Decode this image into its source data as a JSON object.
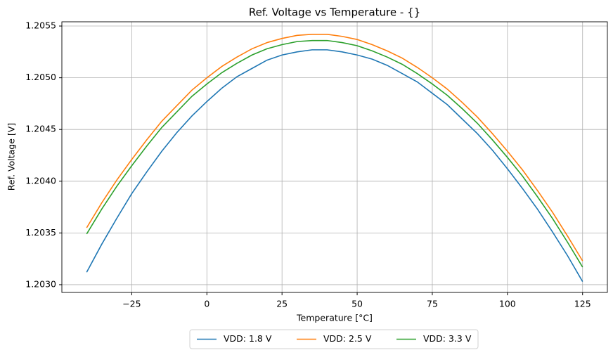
{
  "chart_data": {
    "type": "line",
    "title": "Ref. Voltage vs Temperature - {}",
    "x_label": "Temperature [°C]",
    "y_label": "Ref. Voltage [V]",
    "x": [
      -40,
      -35,
      -30,
      -25,
      -20,
      -15,
      -10,
      -5,
      0,
      5,
      10,
      15,
      20,
      25,
      30,
      35,
      40,
      45,
      50,
      55,
      60,
      65,
      70,
      75,
      80,
      85,
      90,
      95,
      100,
      105,
      110,
      115,
      120,
      125
    ],
    "series": [
      {
        "name": "VDD: 1.8 V",
        "color": "#1f77b4",
        "values": [
          1.20312,
          1.20339,
          1.20364,
          1.20388,
          1.20409,
          1.20429,
          1.20447,
          1.20463,
          1.20477,
          1.2049,
          1.20501,
          1.20509,
          1.20517,
          1.20522,
          1.20525,
          1.20527,
          1.20527,
          1.20525,
          1.20522,
          1.20518,
          1.20512,
          1.20504,
          1.20496,
          1.20485,
          1.20474,
          1.2046,
          1.20446,
          1.2043,
          1.20412,
          1.20393,
          1.20373,
          1.20351,
          1.20328,
          1.20303
        ]
      },
      {
        "name": "VDD: 2.5 V",
        "color": "#ff7f0e",
        "values": [
          1.20355,
          1.20379,
          1.20401,
          1.20421,
          1.2044,
          1.20458,
          1.20473,
          1.20488,
          1.205,
          1.20511,
          1.2052,
          1.20528,
          1.20534,
          1.20538,
          1.20541,
          1.20542,
          1.20542,
          1.2054,
          1.20537,
          1.20532,
          1.20526,
          1.20519,
          1.2051,
          1.205,
          1.20489,
          1.20476,
          1.20462,
          1.20446,
          1.20429,
          1.20411,
          1.20391,
          1.2037,
          1.20347,
          1.20323
        ]
      },
      {
        "name": "VDD: 3.3 V",
        "color": "#2ca02c",
        "values": [
          1.20349,
          1.20373,
          1.20395,
          1.20415,
          1.20434,
          1.20452,
          1.20467,
          1.20482,
          1.20494,
          1.20505,
          1.20514,
          1.20522,
          1.20528,
          1.20532,
          1.20535,
          1.20536,
          1.20536,
          1.20534,
          1.20531,
          1.20526,
          1.2052,
          1.20513,
          1.20504,
          1.20494,
          1.20483,
          1.2047,
          1.20456,
          1.2044,
          1.20423,
          1.20405,
          1.20385,
          1.20364,
          1.20341,
          1.20317
        ]
      }
    ],
    "xlim": [
      -48.25,
      133.25
    ],
    "xticks": [
      {
        "value": -25,
        "label": "−25"
      },
      0,
      25,
      50,
      75,
      100,
      125
    ],
    "ylim": [
      1.202925,
      1.205541
    ],
    "yticks": [
      {
        "value": 1.203,
        "label": "1.2030"
      },
      {
        "value": 1.2035,
        "label": "1.2035"
      },
      {
        "value": 1.204,
        "label": "1.2040"
      },
      {
        "value": 1.2045,
        "label": "1.2045"
      },
      {
        "value": 1.205,
        "label": "1.2050"
      },
      1.2055
    ],
    "grid": true,
    "legend": "below"
  }
}
